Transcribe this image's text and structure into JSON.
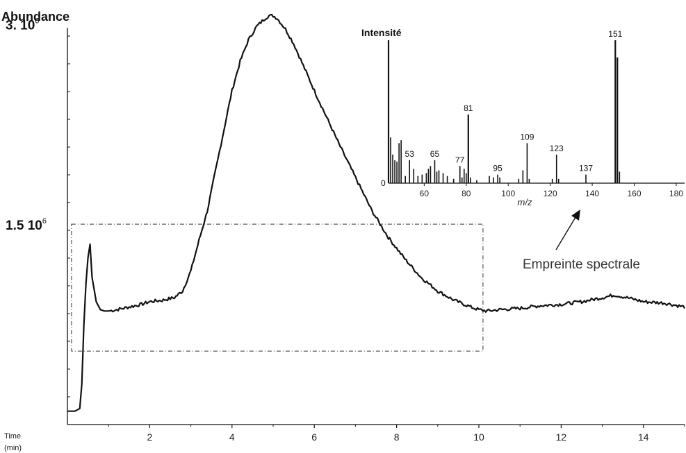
{
  "chart_data": [
    {
      "type": "line",
      "title": "",
      "ylabel": "Abundance",
      "xlabel": "Time (min)",
      "xlabel_lines": [
        "Time",
        "(min)"
      ],
      "xlim": [
        0,
        15
      ],
      "ylim": [
        0,
        3.1
      ],
      "x_ticks": [
        2,
        4,
        6,
        8,
        10,
        12,
        14
      ],
      "x_tick_labels": [
        "2",
        "4",
        "6",
        "8",
        "10",
        "12",
        "14"
      ],
      "y_labels": [
        {
          "value": 3.0,
          "label": "3. 10",
          "exp": "6"
        },
        {
          "value": 1.5,
          "label": "1.5 10",
          "exp": "6"
        }
      ],
      "grid": false,
      "series": [
        {
          "x": [
            0,
            0.18,
            0.3,
            0.35,
            0.4,
            0.45,
            0.5,
            0.55,
            0.6,
            0.7,
            0.8,
            0.9,
            1.0,
            1.2,
            1.5,
            1.8,
            2.0,
            2.3,
            2.6,
            2.8,
            3.0,
            3.2,
            3.4,
            3.6,
            3.8,
            4.0,
            4.2,
            4.4,
            4.6,
            4.8,
            4.9,
            5.0,
            5.1,
            5.3,
            5.5,
            5.8,
            6.0,
            6.3,
            6.6,
            7.0,
            7.4,
            7.8,
            8.2,
            8.6,
            9.0,
            9.4,
            9.8,
            10.0,
            10.2,
            10.5,
            11.0,
            11.5,
            12.0,
            12.5,
            13.0,
            13.3,
            13.6,
            14.0,
            14.5,
            15.0
          ],
          "y": [
            0.1,
            0.1,
            0.12,
            0.3,
            0.75,
            1.05,
            1.25,
            1.35,
            1.1,
            0.92,
            0.86,
            0.85,
            0.85,
            0.86,
            0.88,
            0.9,
            0.92,
            0.93,
            0.95,
            1.0,
            1.15,
            1.38,
            1.6,
            1.9,
            2.2,
            2.5,
            2.72,
            2.88,
            2.98,
            3.04,
            3.06,
            3.06,
            3.04,
            2.96,
            2.85,
            2.64,
            2.5,
            2.3,
            2.1,
            1.85,
            1.6,
            1.4,
            1.24,
            1.1,
            1.0,
            0.93,
            0.88,
            0.86,
            0.85,
            0.86,
            0.87,
            0.89,
            0.9,
            0.92,
            0.95,
            0.97,
            0.95,
            0.92,
            0.91,
            0.88
          ]
        }
      ],
      "inset_box": {
        "x": [
          0.1,
          10.1
        ],
        "y": [
          0.55,
          1.5
        ]
      }
    },
    {
      "type": "bar",
      "title": "",
      "ylabel": "Intensité",
      "xlabel": "m/z",
      "xlim": [
        43,
        184
      ],
      "x_ticks": [
        60,
        80,
        100,
        120,
        140,
        160,
        180
      ],
      "x_tick_labels": [
        "60",
        "80",
        "100",
        "120",
        "140",
        "160",
        "180"
      ],
      "y_tick_labels": [
        "0"
      ],
      "ylim": [
        0,
        100
      ],
      "grid": false,
      "peaks": [
        {
          "x": 43,
          "y": 100,
          "label": ""
        },
        {
          "x": 44,
          "y": 32,
          "label": ""
        },
        {
          "x": 45,
          "y": 20,
          "label": ""
        },
        {
          "x": 46,
          "y": 16,
          "label": ""
        },
        {
          "x": 47,
          "y": 15,
          "label": ""
        },
        {
          "x": 48,
          "y": 28,
          "label": ""
        },
        {
          "x": 49,
          "y": 30,
          "label": ""
        },
        {
          "x": 51,
          "y": 5,
          "label": ""
        },
        {
          "x": 53,
          "y": 16,
          "label": "53"
        },
        {
          "x": 55,
          "y": 10,
          "label": ""
        },
        {
          "x": 57,
          "y": 5,
          "label": ""
        },
        {
          "x": 59,
          "y": 6,
          "label": ""
        },
        {
          "x": 61,
          "y": 7,
          "label": ""
        },
        {
          "x": 62,
          "y": 10,
          "label": ""
        },
        {
          "x": 63,
          "y": 12,
          "label": ""
        },
        {
          "x": 65,
          "y": 16,
          "label": "65"
        },
        {
          "x": 66,
          "y": 8,
          "label": ""
        },
        {
          "x": 67,
          "y": 9,
          "label": ""
        },
        {
          "x": 69,
          "y": 7,
          "label": ""
        },
        {
          "x": 71,
          "y": 5,
          "label": ""
        },
        {
          "x": 74,
          "y": 3,
          "label": ""
        },
        {
          "x": 77,
          "y": 12,
          "label": "77"
        },
        {
          "x": 78,
          "y": 4,
          "label": ""
        },
        {
          "x": 79,
          "y": 10,
          "label": ""
        },
        {
          "x": 80,
          "y": 7,
          "label": ""
        },
        {
          "x": 81,
          "y": 48,
          "label": "81"
        },
        {
          "x": 82,
          "y": 4,
          "label": ""
        },
        {
          "x": 85,
          "y": 2,
          "label": ""
        },
        {
          "x": 91,
          "y": 5,
          "label": ""
        },
        {
          "x": 93,
          "y": 4,
          "label": ""
        },
        {
          "x": 95,
          "y": 6,
          "label": "95"
        },
        {
          "x": 96,
          "y": 4,
          "label": ""
        },
        {
          "x": 105,
          "y": 3,
          "label": ""
        },
        {
          "x": 107,
          "y": 9,
          "label": ""
        },
        {
          "x": 109,
          "y": 28,
          "label": "109"
        },
        {
          "x": 110,
          "y": 3,
          "label": ""
        },
        {
          "x": 121,
          "y": 3,
          "label": ""
        },
        {
          "x": 123,
          "y": 20,
          "label": "123"
        },
        {
          "x": 124,
          "y": 3,
          "label": ""
        },
        {
          "x": 137,
          "y": 6,
          "label": "137"
        },
        {
          "x": 151,
          "y": 100,
          "label": "151"
        },
        {
          "x": 152,
          "y": 88,
          "label": ""
        },
        {
          "x": 153,
          "y": 8,
          "label": ""
        }
      ]
    }
  ],
  "annotation": {
    "text": "Empreinte spectrale"
  }
}
